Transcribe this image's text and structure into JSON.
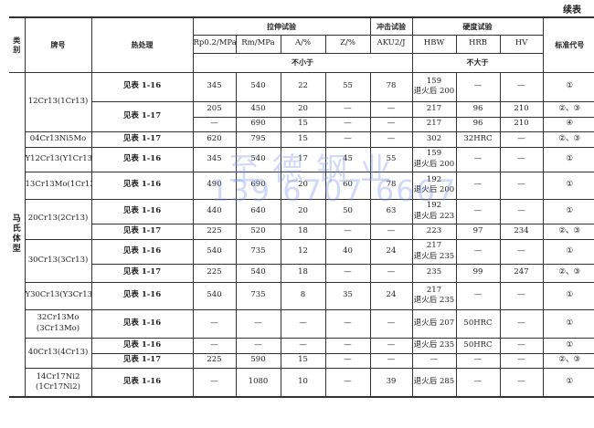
{
  "continued_label": "续表",
  "watermark": {
    "name": "至德钢业",
    "phone": "139 6707 6667"
  },
  "header": {
    "category": "类\n别",
    "grade": "牌号",
    "heat_treatment": "热处理",
    "tensile_test": "拉伸试验",
    "impact_test": "冲击试验",
    "hardness_test": "硬度试验",
    "standard_code": "标准代号",
    "columns": [
      "Rp0.2/MPa",
      "Rm/MPa",
      "A/%",
      "Z/%",
      "AKU2/J",
      "HBW",
      "HRB",
      "HV"
    ],
    "not_less_than": "不小于",
    "not_greater_than": "不大于"
  },
  "category": "马\n氏\n体\n型",
  "grades": [
    {
      "name": "12Cr13(1Cr13)",
      "treatments": [
        {
          "label": "见表 1-16",
          "rows": [
            [
              "345",
              "540",
              "22",
              "55",
              "78",
              "159\n退火后 200",
              "—",
              "—",
              "①"
            ]
          ]
        },
        {
          "label": "见表 1-17",
          "rows": [
            [
              "205",
              "450",
              "20",
              "—",
              "—",
              "217",
              "96",
              "210",
              "②、③"
            ],
            [
              "—",
              "690",
              "15",
              "—",
              "—",
              "217",
              "96",
              "210",
              "④"
            ]
          ]
        }
      ]
    },
    {
      "name": "04Cr13Ni5Mo",
      "treatments": [
        {
          "label": "见表 1-17",
          "rows": [
            [
              "620",
              "795",
              "15",
              "—",
              "—",
              "302",
              "32HRC",
              "—",
              "②、③"
            ]
          ]
        }
      ]
    },
    {
      "name": "Y12Cr13(Y1Cr13)",
      "treatments": [
        {
          "label": "见表 1-16",
          "rows": [
            [
              "345",
              "540",
              "17",
              "45",
              "55",
              "159\n退火后 200",
              "—",
              "—",
              "①"
            ]
          ]
        }
      ]
    },
    {
      "name": "13Cr13Mo(1Cr13Mo)",
      "treatments": [
        {
          "label": "见表 1-16",
          "rows": [
            [
              "490",
              "690",
              "20",
              "60",
              "78",
              "192\n退火后 200",
              "—",
              "—",
              "①"
            ]
          ]
        }
      ]
    },
    {
      "name": "20Cr13(2Cr13)",
      "treatments": [
        {
          "label": "见表 1-16",
          "rows": [
            [
              "440",
              "640",
              "20",
              "50",
              "63",
              "192\n退火后 223",
              "—",
              "—",
              "①"
            ]
          ]
        },
        {
          "label": "见表 1-17",
          "rows": [
            [
              "225",
              "520",
              "18",
              "—",
              "—",
              "223",
              "97",
              "234",
              "②、③"
            ]
          ]
        }
      ]
    },
    {
      "name": "30Cr13(3Cr13)",
      "treatments": [
        {
          "label": "见表 1-16",
          "rows": [
            [
              "540",
              "735",
              "12",
              "40",
              "24",
              "217\n退火后 235",
              "—",
              "—",
              "①"
            ]
          ]
        },
        {
          "label": "见表 1-17",
          "rows": [
            [
              "225",
              "540",
              "18",
              "—",
              "—",
              "235",
              "99",
              "247",
              "②、③"
            ]
          ]
        }
      ]
    },
    {
      "name": "Y30Cr13(Y3Cr13)",
      "treatments": [
        {
          "label": "见表 1-16",
          "rows": [
            [
              "540",
              "735",
              "8",
              "35",
              "24",
              "217\n退火后 235",
              "—",
              "—",
              "①"
            ]
          ]
        }
      ]
    },
    {
      "name": "32Cr13Mo\n(3Cr13Mo)",
      "treatments": [
        {
          "label": "见表 1-16",
          "rows": [
            [
              "—",
              "—",
              "—",
              "—",
              "—",
              "退火后 207",
              "50HRC",
              "—",
              "①"
            ]
          ]
        }
      ]
    },
    {
      "name": "40Cr13(4Cr13)",
      "treatments": [
        {
          "label": "见表 1-16",
          "rows": [
            [
              "—",
              "—",
              "—",
              "—",
              "—",
              "退火后 235",
              "50HRC",
              "—",
              "①"
            ]
          ]
        },
        {
          "label": "见表 1-17",
          "rows": [
            [
              "225",
              "590",
              "15",
              "—",
              "—",
              "—",
              "—",
              "—",
              "②、③"
            ]
          ]
        }
      ]
    },
    {
      "name": "14Cr17Ni2\n(1Cr17Ni2)",
      "treatments": [
        {
          "label": "见表 1-16",
          "rows": [
            [
              "—",
              "1080",
              "10",
              "—",
              "39",
              "退火后 285",
              "—",
              "—",
              "①"
            ]
          ]
        }
      ]
    }
  ]
}
